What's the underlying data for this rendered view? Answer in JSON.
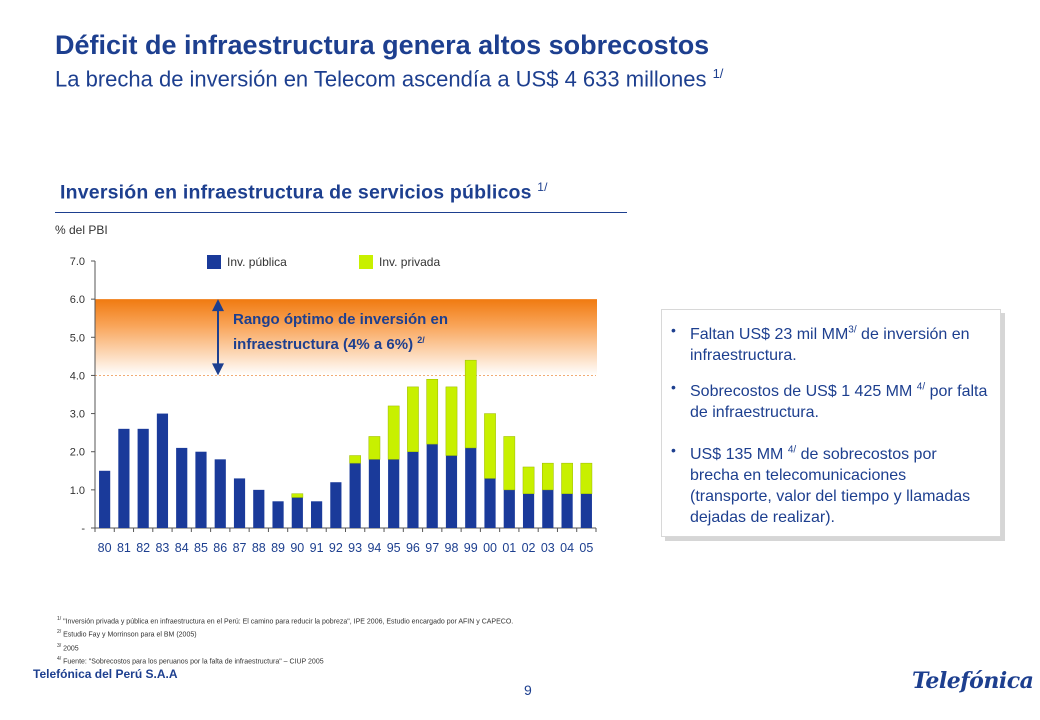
{
  "header": {
    "title": "Déficit de infraestructura genera altos sobrecostos",
    "subtitle": "La brecha de inversión en Telecom ascendía a US$ 4 633 millones",
    "subtitle_note": "1/"
  },
  "chart_data": {
    "type": "bar",
    "stacked": true,
    "title": "Inversión en infraestructura de servicios públicos",
    "title_note": "1/",
    "ylabel": "% del PBI",
    "xlabel": "",
    "ylim": [
      0,
      7
    ],
    "yticks": [
      "-",
      "1.0",
      "2.0",
      "3.0",
      "4.0",
      "5.0",
      "6.0",
      "7.0"
    ],
    "categories": [
      "80",
      "81",
      "82",
      "83",
      "84",
      "85",
      "86",
      "87",
      "88",
      "89",
      "90",
      "91",
      "92",
      "93",
      "94",
      "95",
      "96",
      "97",
      "98",
      "99",
      "00",
      "01",
      "02",
      "03",
      "04",
      "05"
    ],
    "series": [
      {
        "name": "Inv. pública",
        "color": "#1a3a9a",
        "values": [
          1.5,
          2.6,
          2.6,
          3.0,
          2.1,
          2.0,
          1.8,
          1.3,
          1.0,
          0.7,
          0.8,
          0.7,
          1.2,
          1.7,
          1.8,
          1.8,
          2.0,
          2.2,
          1.9,
          2.1,
          1.3,
          1.0,
          0.9,
          1.0,
          0.9,
          0.9
        ]
      },
      {
        "name": "Inv. privada",
        "color": "#c8f000",
        "values": [
          0,
          0,
          0,
          0,
          0,
          0,
          0,
          0,
          0,
          0,
          0.1,
          0,
          0,
          0.2,
          0.6,
          1.4,
          1.7,
          1.7,
          1.8,
          2.3,
          1.7,
          1.4,
          0.7,
          0.7,
          0.8,
          0.8
        ]
      }
    ],
    "band": {
      "from": 4.0,
      "to": 6.0,
      "label": "Rango óptimo de inversión en infraestructura (4% a 6%)",
      "label_note": "2/"
    },
    "legend_position": "top",
    "grid": false
  },
  "bullets": [
    {
      "parts": [
        {
          "t": "Faltan US$ 23 mil  MM"
        },
        {
          "t": "3/",
          "sup": true
        },
        {
          "t": " de inversión en infraestructura."
        }
      ]
    },
    {
      "parts": [
        {
          "t": "Sobrecostos de US$ 1 425 MM "
        },
        {
          "t": "4/",
          "sup": true
        },
        {
          "t": " por falta de infraestructura."
        }
      ]
    },
    {
      "parts": [
        {
          "t": "US$ 135 MM "
        },
        {
          "t": "4/",
          "sup": true
        },
        {
          "t": " de sobrecostos por brecha en telecomunicaciones (transporte, valor del tiempo y llamadas dejadas de realizar)."
        }
      ]
    }
  ],
  "footnotes": [
    {
      "mark": "1/",
      "text": " \"Inversión privada y pública en infraestructura en el Perú: El camino para reducir la pobreza\", IPE 2006, Estudio encargado por AFIN y CAPECO."
    },
    {
      "mark": "2/",
      "text": "  Estudio Fay y Morrinson para el BM (2005)"
    },
    {
      "mark": "3/",
      "text": "  2005"
    },
    {
      "mark": "4/",
      "text": " Fuente: \"Sobrecostos  para los peruanos por la falta de infraestructura\" – CIUP 2005"
    }
  ],
  "footer": {
    "company": "Telefónica del Perú S.A.A",
    "page_number": "9",
    "logo_text": "Telefónica",
    "logo_icon": "telefonica-wordmark"
  }
}
